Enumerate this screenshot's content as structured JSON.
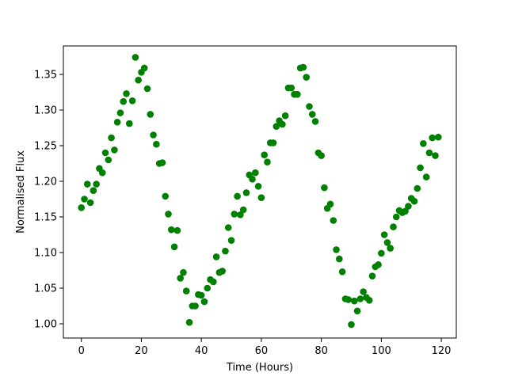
{
  "chart_data": {
    "type": "scatter",
    "title": "",
    "xlabel": "Time (Hours)",
    "ylabel": "Normalised Flux",
    "xlim": [
      -6,
      125
    ],
    "ylim": [
      0.98,
      1.39
    ],
    "xticks": [
      0,
      20,
      40,
      60,
      80,
      100,
      120
    ],
    "xtick_labels": [
      "0",
      "20",
      "40",
      "60",
      "80",
      "100",
      "120"
    ],
    "yticks": [
      1.0,
      1.05,
      1.1,
      1.15,
      1.2,
      1.25,
      1.3,
      1.35
    ],
    "ytick_labels": [
      "1.00",
      "1.05",
      "1.10",
      "1.15",
      "1.20",
      "1.25",
      "1.30",
      "1.35"
    ],
    "grid": false,
    "marker_color": "#008000",
    "series": [
      {
        "x": [
          0,
          1,
          2,
          3,
          4,
          5,
          6,
          7,
          8,
          9,
          10,
          11,
          12,
          13,
          14,
          15,
          16,
          17,
          18,
          19,
          20,
          21,
          22,
          23,
          24,
          25,
          26,
          27,
          28,
          29,
          30,
          31,
          32,
          33,
          34,
          35,
          36,
          37,
          38,
          39,
          40,
          41,
          42,
          43,
          44,
          45,
          46,
          47,
          48,
          49,
          50,
          51,
          52,
          53,
          54,
          55,
          56,
          57,
          58,
          59,
          60,
          61,
          62,
          63,
          64,
          65,
          66,
          67,
          68,
          69,
          70,
          71,
          72,
          73,
          74,
          75,
          76,
          77,
          78,
          79,
          80,
          81,
          82,
          83,
          84,
          85,
          86,
          87,
          88,
          89,
          90,
          91,
          92,
          93,
          94,
          95,
          96,
          97,
          98,
          99,
          100,
          101,
          102,
          103,
          104,
          105,
          106,
          107,
          108,
          109,
          110,
          111,
          112,
          113,
          114,
          115,
          116,
          117,
          118,
          119
        ],
        "y": [
          1.163,
          1.175,
          1.196,
          1.17,
          1.187,
          1.196,
          1.218,
          1.212,
          1.24,
          1.23,
          1.261,
          1.244,
          1.283,
          1.296,
          1.312,
          1.323,
          1.281,
          1.313,
          1.374,
          1.342,
          1.353,
          1.359,
          1.33,
          1.294,
          1.265,
          1.252,
          1.225,
          1.226,
          1.179,
          1.154,
          1.132,
          1.108,
          1.131,
          1.064,
          1.072,
          1.046,
          1.002,
          1.025,
          1.025,
          1.041,
          1.04,
          1.031,
          1.05,
          1.062,
          1.059,
          1.094,
          1.072,
          1.074,
          1.102,
          1.135,
          1.117,
          1.154,
          1.179,
          1.153,
          1.16,
          1.184,
          1.209,
          1.203,
          1.212,
          1.193,
          1.177,
          1.237,
          1.227,
          1.254,
          1.254,
          1.277,
          1.285,
          1.28,
          1.292,
          1.331,
          1.331,
          1.322,
          1.322,
          1.359,
          1.36,
          1.346,
          1.305,
          1.294,
          1.284,
          1.24,
          1.236,
          1.191,
          1.162,
          1.168,
          1.145,
          1.104,
          1.091,
          1.073,
          1.035,
          1.034,
          0.999,
          1.032,
          1.018,
          1.035,
          1.045,
          1.037,
          1.033,
          1.067,
          1.08,
          1.083,
          1.099,
          1.125,
          1.114,
          1.106,
          1.136,
          1.15,
          1.159,
          1.156,
          1.158,
          1.165,
          1.176,
          1.172,
          1.19,
          1.219,
          1.253,
          1.206,
          1.24,
          1.261,
          1.236,
          1.262
        ]
      }
    ]
  }
}
